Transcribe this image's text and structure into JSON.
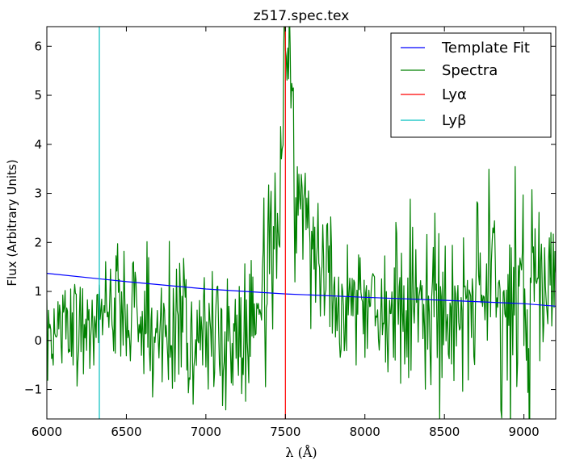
{
  "chart_data": {
    "type": "line",
    "title": "z517.spec.tex",
    "xlabel": "λ (Å)",
    "ylabel": "Flux (Arbitrary Units)",
    "xlim": [
      6000,
      9200
    ],
    "ylim": [
      -1.6,
      6.4
    ],
    "xticks": [
      6000,
      6500,
      7000,
      7500,
      8000,
      8500,
      9000
    ],
    "xtick_labels": [
      "6000",
      "6500",
      "7000",
      "7500",
      "8000",
      "8500",
      "9000"
    ],
    "yticks": [
      -1,
      0,
      1,
      2,
      3,
      4,
      5,
      6
    ],
    "ytick_labels": [
      "−1",
      "0",
      "1",
      "2",
      "3",
      "4",
      "5",
      "6"
    ],
    "legend_position": "top-right",
    "grid": false,
    "series": [
      {
        "name": "Template Fit",
        "color": "#0000ff",
        "kind": "line",
        "x": [
          6000,
          6500,
          7000,
          7500,
          8000,
          8500,
          9000,
          9200
        ],
        "y": [
          1.37,
          1.2,
          1.05,
          0.95,
          0.88,
          0.82,
          0.75,
          0.7
        ]
      },
      {
        "name": "Spectra",
        "color": "#008000",
        "kind": "line",
        "x_start": 6000,
        "x_step": 5,
        "anchors": [
          [
            6000,
            0.0
          ],
          [
            6050,
            0.2
          ],
          [
            6100,
            0.35
          ],
          [
            6200,
            0.3
          ],
          [
            6300,
            0.35
          ],
          [
            6400,
            0.9
          ],
          [
            6450,
            0.75
          ],
          [
            6500,
            0.55
          ],
          [
            6600,
            0.25
          ],
          [
            6700,
            0.3
          ],
          [
            6800,
            0.3
          ],
          [
            6900,
            0.2
          ],
          [
            7000,
            0.15
          ],
          [
            7100,
            0.05
          ],
          [
            7200,
            0.0
          ],
          [
            7250,
            0.25
          ],
          [
            7300,
            0.55
          ],
          [
            7350,
            0.8
          ],
          [
            7400,
            1.5
          ],
          [
            7450,
            2.4
          ],
          [
            7480,
            3.8
          ],
          [
            7500,
            6.4
          ],
          [
            7530,
            5.5
          ],
          [
            7560,
            3.0
          ],
          [
            7600,
            2.6
          ],
          [
            7650,
            2.2
          ],
          [
            7700,
            1.8
          ],
          [
            7750,
            1.4
          ],
          [
            7800,
            1.1
          ],
          [
            7850,
            1.0
          ],
          [
            8000,
            0.95
          ],
          [
            8200,
            0.75
          ],
          [
            8400,
            0.8
          ],
          [
            8600,
            0.75
          ],
          [
            8800,
            0.8
          ],
          [
            9000,
            0.85
          ],
          [
            9200,
            0.9
          ]
        ],
        "noise": [
          [
            6000,
            0.65
          ],
          [
            7400,
            0.75
          ],
          [
            7600,
            0.7
          ],
          [
            8100,
            0.7
          ],
          [
            8400,
            0.95
          ],
          [
            8700,
            0.95
          ],
          [
            9000,
            1.3
          ],
          [
            9200,
            1.0
          ]
        ]
      },
      {
        "name": "Lyα",
        "color": "#ff0000",
        "kind": "vline",
        "x": 7500
      },
      {
        "name": "Lyβ",
        "color": "#00bfbf",
        "kind": "vline",
        "x": 6330
      }
    ]
  }
}
